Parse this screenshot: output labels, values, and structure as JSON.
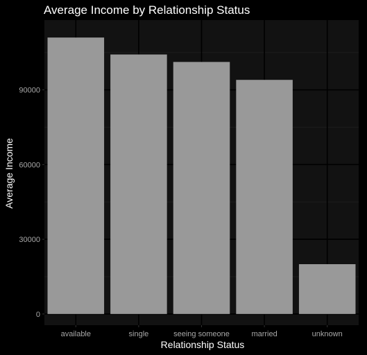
{
  "chart_data": {
    "type": "bar",
    "title": "Average Income by Relationship Status",
    "xlabel": "Relationship Status",
    "ylabel": "Average Income",
    "categories": [
      "available",
      "single",
      "seeing someone",
      "married",
      "unknown"
    ],
    "values": [
      111000,
      104200,
      101200,
      94000,
      20000
    ],
    "ylim": [
      -4500,
      118000
    ],
    "yticks": [
      0,
      30000,
      60000,
      90000
    ],
    "ytick_labels": [
      "0",
      "30000",
      "60000",
      "90000"
    ],
    "grid": true,
    "legend": "none",
    "colors": {
      "background": "#000000",
      "panel": "#121212",
      "grid_major": "#000000",
      "grid_minor": "#1c1c1c",
      "bar": "#999999",
      "text": "#ffffff",
      "tick_text": "#a8a8a8"
    }
  }
}
